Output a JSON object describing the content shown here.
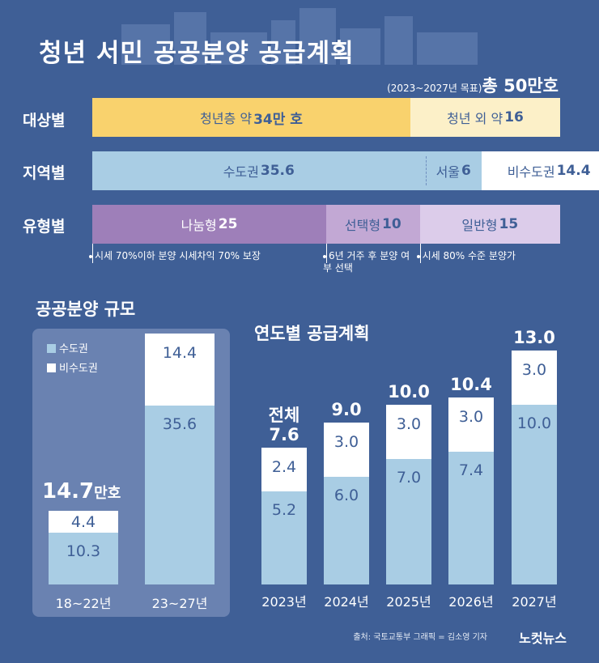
{
  "header": {
    "title": "청년 서민 공공분양 공급계획",
    "period": "(2023~2027년 목표)",
    "total": "총 50만호"
  },
  "breakdown": {
    "rows": [
      {
        "label": "대상별",
        "segments": [
          {
            "name": "청년층 약",
            "value": 34,
            "suffix": "만 호",
            "color": "#f9d26d"
          },
          {
            "name": "청년 외 약",
            "value": 16,
            "suffix": "",
            "color": "#fcf0c8"
          }
        ]
      },
      {
        "label": "지역별",
        "segments": [
          {
            "name": "수도권",
            "value": 35.6,
            "suffix": "",
            "color": "#a9cde4"
          },
          {
            "name": "서울",
            "value": 6,
            "suffix": "",
            "color": "#a9cde4"
          },
          {
            "name": "비수도권",
            "value": 14.4,
            "suffix": "",
            "color": "#ffffff"
          }
        ]
      },
      {
        "label": "유형별",
        "segments": [
          {
            "name": "나눔형",
            "value": 25,
            "suffix": "",
            "color": "#9e7fb9"
          },
          {
            "name": "선택형",
            "value": 10,
            "suffix": "",
            "color": "#c2a8d4"
          },
          {
            "name": "일반형",
            "value": 15,
            "suffix": "",
            "color": "#dcccea"
          }
        ]
      }
    ],
    "notes": [
      "시세 70%이하 분양 시세차익 70% 보장",
      "6년 거주 후 분양 여부 선택",
      "시세 80% 수준 분양가"
    ]
  },
  "chart_data": [
    {
      "type": "bar",
      "title": "공공분양 규모",
      "categories": [
        "18~22년",
        "23~27년"
      ],
      "series": [
        {
          "name": "수도권",
          "values": [
            10.3,
            35.6
          ],
          "color": "#a9cde4"
        },
        {
          "name": "비수도권",
          "values": [
            4.4,
            14.4
          ],
          "color": "#ffffff"
        }
      ],
      "totals": [
        "14.7",
        null
      ],
      "total_unit": "만호",
      "stacked": true,
      "legend": "top-left"
    },
    {
      "type": "bar",
      "title": "연도별 공급계획",
      "categories": [
        "2023년",
        "2024년",
        "2025년",
        "2026년",
        "2027년"
      ],
      "series": [
        {
          "name": "수도권",
          "values": [
            5.2,
            6.0,
            7.0,
            7.4,
            10.0
          ],
          "color": "#a9cde4"
        },
        {
          "name": "비수도권",
          "values": [
            2.4,
            3.0,
            3.0,
            3.0,
            3.0
          ],
          "color": "#ffffff"
        }
      ],
      "total_labels": [
        "전체\n7.6",
        "9.0",
        "10.0",
        "10.4",
        "13.0"
      ],
      "stacked": true
    }
  ],
  "footer": {
    "credit": "출처: 국토교통부   그래픽 = 김소영 기자",
    "logo": "노컷뉴스"
  }
}
